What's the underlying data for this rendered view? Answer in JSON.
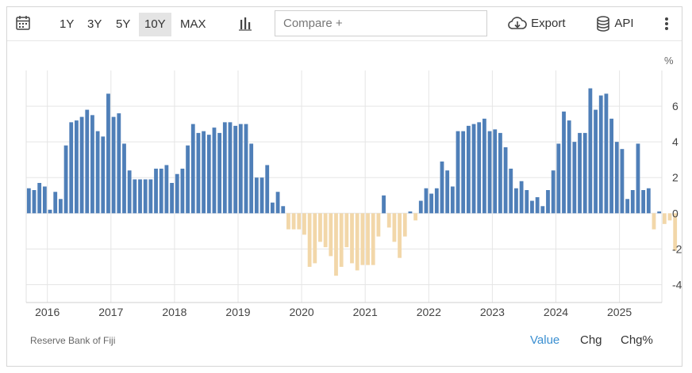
{
  "toolbar": {
    "ranges": [
      "1Y",
      "3Y",
      "5Y",
      "10Y",
      "MAX"
    ],
    "active_range": "10Y",
    "compare_placeholder": "Compare +",
    "export_label": "Export",
    "api_label": "API"
  },
  "footer": {
    "source": "Reserve Bank of Fiji",
    "modes": [
      "Value",
      "Chg",
      "Chg%"
    ],
    "active_mode": "Value"
  },
  "colors": {
    "positive": "#4f7fb8",
    "negative": "#f2d7a9",
    "grid": "#e5e5e5"
  },
  "chart_data": {
    "type": "bar",
    "ylabel": "%",
    "ylim": [
      -5,
      8
    ],
    "yticks": [
      6,
      4,
      2,
      0,
      -2,
      -4
    ],
    "grid": true,
    "x_tick_labels": [
      "2016",
      "2017",
      "2018",
      "2019",
      "2020",
      "2021",
      "2022",
      "2023",
      "2024",
      "2025"
    ],
    "x_start": "2015-09",
    "x_end": "2025-08",
    "values": [
      1.4,
      1.3,
      1.7,
      1.5,
      0.2,
      1.2,
      0.8,
      3.8,
      5.1,
      5.2,
      5.4,
      5.8,
      5.5,
      4.6,
      4.3,
      6.7,
      5.4,
      5.6,
      3.9,
      2.4,
      1.9,
      1.9,
      1.9,
      1.9,
      2.5,
      2.5,
      2.7,
      1.7,
      2.2,
      2.5,
      3.8,
      5.0,
      4.5,
      4.6,
      4.4,
      4.8,
      4.5,
      5.1,
      5.1,
      4.9,
      5.0,
      5.0,
      3.9,
      2.0,
      2.0,
      2.7,
      0.6,
      1.2,
      0.4,
      -0.9,
      -0.9,
      -0.9,
      -1.2,
      -3.0,
      -2.8,
      -1.6,
      -1.9,
      -2.4,
      -3.5,
      -3.0,
      -1.9,
      -2.8,
      -3.2,
      -2.9,
      -2.9,
      -2.9,
      -1.3,
      1.0,
      -0.8,
      -1.6,
      -2.5,
      -1.3,
      0.1,
      -0.4,
      0.7,
      1.4,
      1.1,
      1.4,
      2.9,
      2.4,
      1.5,
      4.6,
      4.6,
      4.9,
      5.0,
      5.1,
      5.3,
      4.6,
      4.7,
      4.5,
      3.7,
      2.5,
      1.4,
      1.8,
      1.3,
      0.7,
      0.9,
      0.4,
      1.3,
      2.4,
      3.9,
      5.7,
      5.2,
      4.0,
      4.5,
      4.5,
      7.0,
      5.8,
      6.6,
      6.7,
      5.3,
      4.0,
      3.6,
      0.8,
      1.3,
      3.9,
      1.3,
      1.4,
      -0.9,
      0.1,
      -0.6,
      -0.4,
      -2.1
    ]
  }
}
